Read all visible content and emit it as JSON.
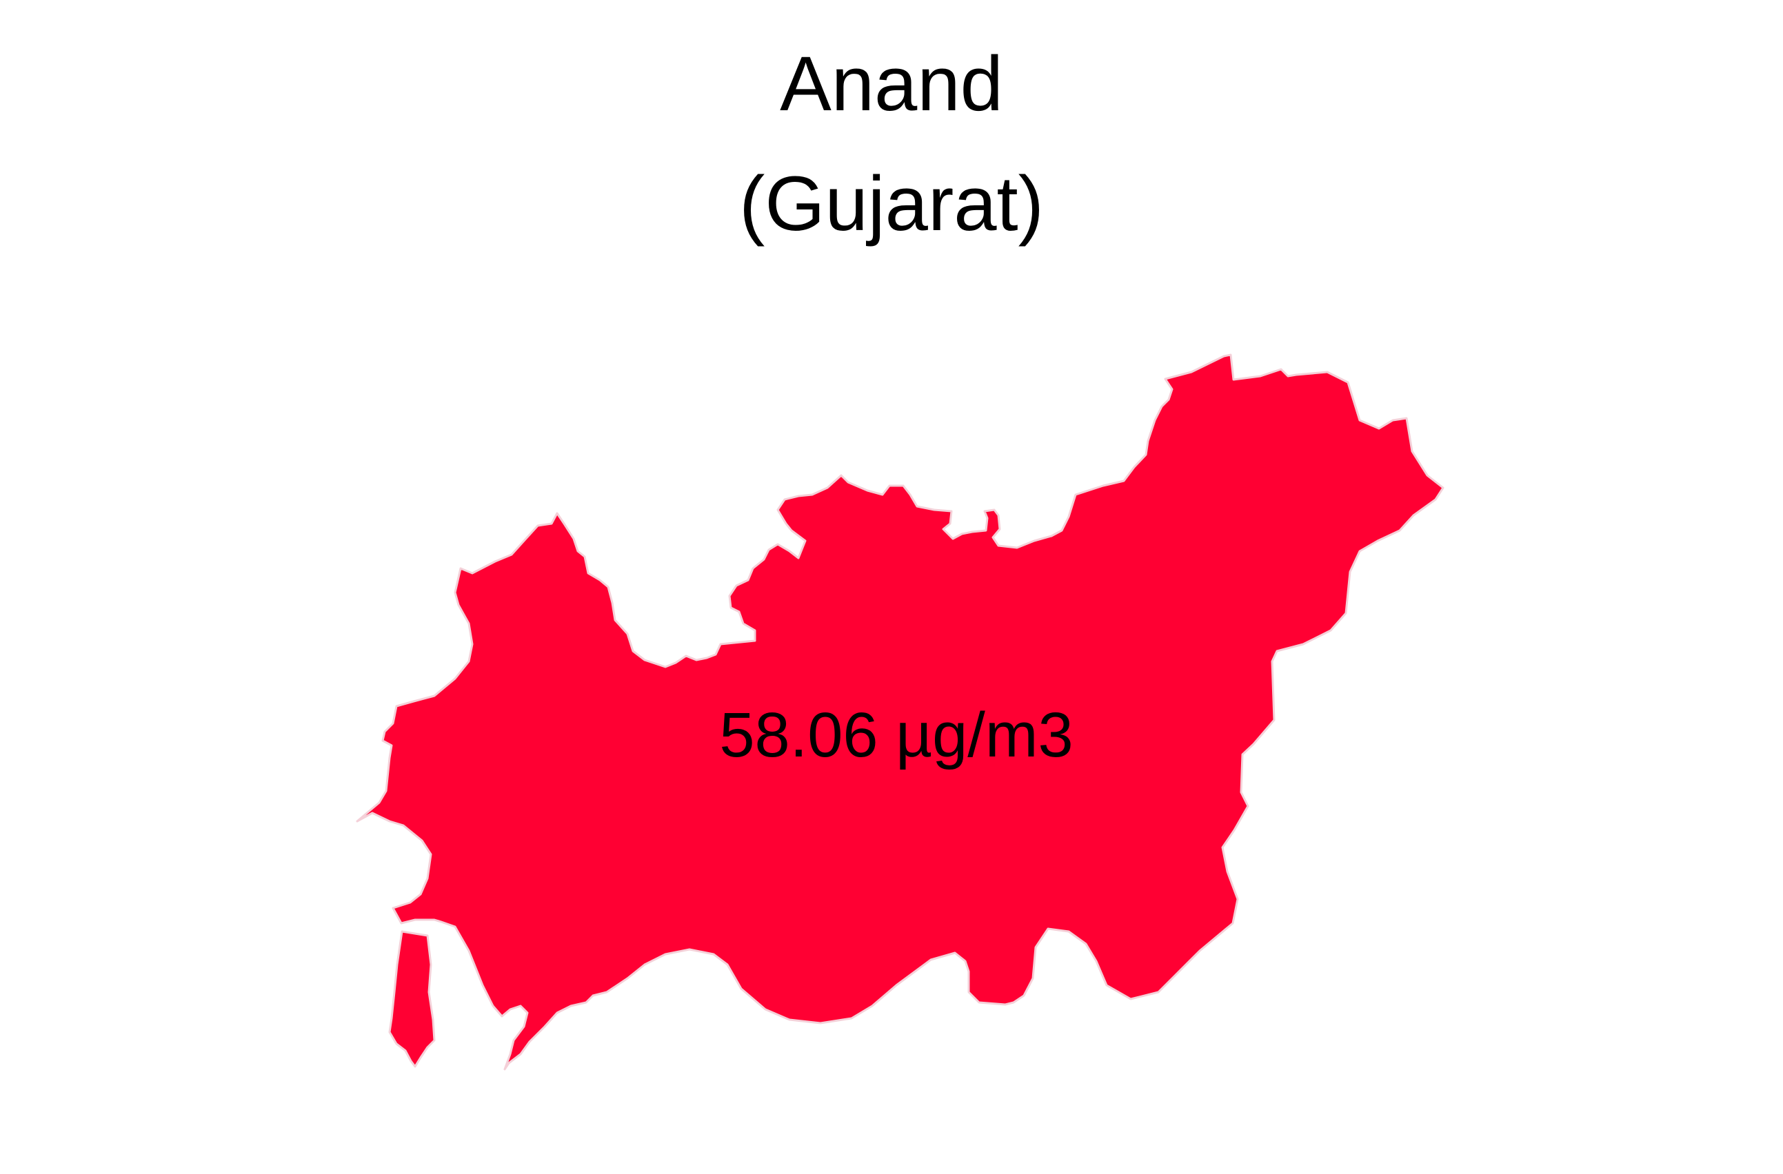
{
  "map": {
    "district": "Anand",
    "state": "(Gujarat)",
    "value_label": "58.06 µg/m3",
    "fill_color": "#FF0033",
    "border_color": "#F4D0D8",
    "background_color": "#FFFFFF"
  }
}
